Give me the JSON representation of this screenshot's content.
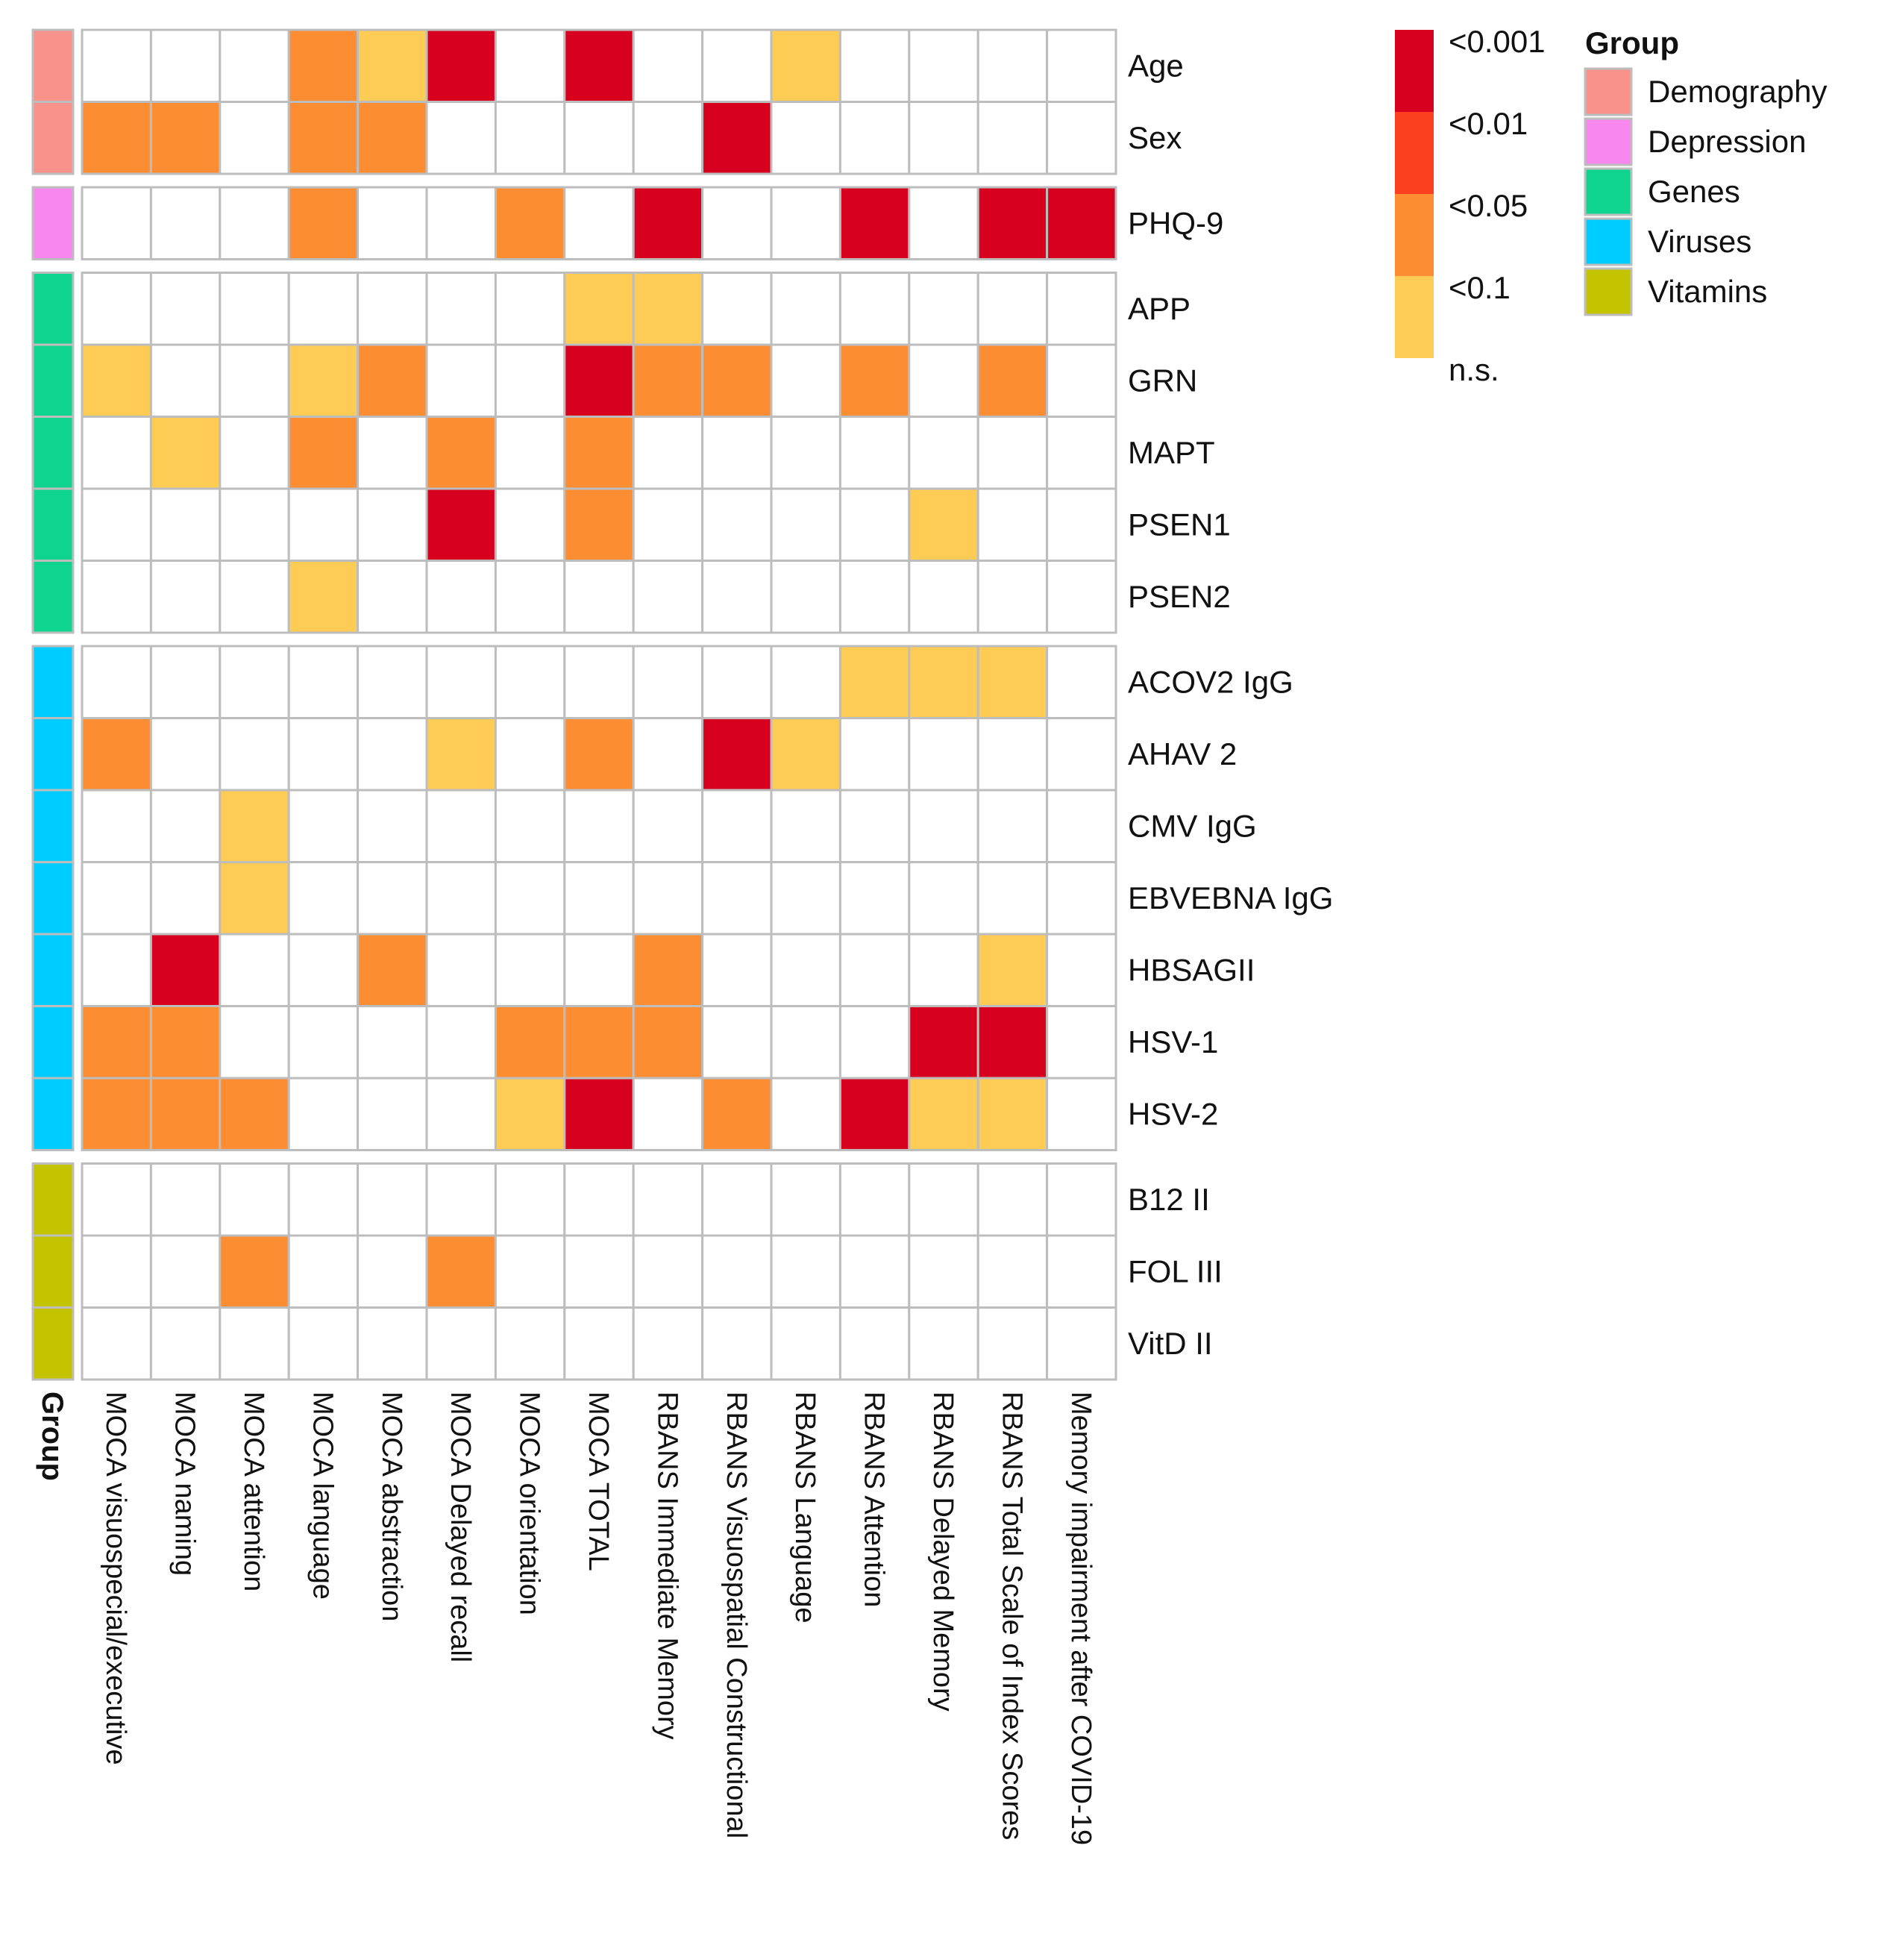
{
  "chart_data": {
    "type": "heatmap",
    "title": "",
    "columns": [
      "MOCA visuospecial/executive",
      "MOCA naming",
      "MOCA attention",
      "MOCA language",
      "MOCA abstraction",
      "MOCA Delayed recall",
      "MOCA orientation",
      "MOCA TOTAL",
      "RBANS Immediate Memory",
      "RBANS Visuospatial Constructional",
      "RBANS Language",
      "RBANS Attention",
      "RBANS Delayed Memory",
      "RBANS Total Scale of  Index Scores",
      "Memory impairment after COVID-19"
    ],
    "groups": [
      {
        "name": "Demography",
        "color": "#f8928a",
        "rows": [
          {
            "label": "Age",
            "values": [
              "ns",
              "ns",
              "ns",
              "<0.05",
              "<0.1",
              "<0.001",
              "ns",
              "<0.001",
              "ns",
              "ns",
              "<0.1",
              "ns",
              "ns",
              "ns",
              "ns"
            ]
          },
          {
            "label": "Sex",
            "values": [
              "<0.05",
              "<0.05",
              "ns",
              "<0.05",
              "<0.05",
              "ns",
              "ns",
              "ns",
              "ns",
              "<0.001",
              "ns",
              "ns",
              "ns",
              "ns",
              "ns"
            ]
          }
        ]
      },
      {
        "name": "Depression",
        "color": "#f987f0",
        "rows": [
          {
            "label": "PHQ-9",
            "values": [
              "ns",
              "ns",
              "ns",
              "<0.05",
              "ns",
              "ns",
              "<0.05",
              "ns",
              "<0.001",
              "ns",
              "ns",
              "<0.001",
              "ns",
              "<0.001",
              "<0.001"
            ]
          }
        ]
      },
      {
        "name": "Genes",
        "color": "#0ed48f",
        "rows": [
          {
            "label": "APP",
            "values": [
              "ns",
              "ns",
              "ns",
              "ns",
              "ns",
              "ns",
              "ns",
              "<0.1",
              "<0.1",
              "ns",
              "ns",
              "ns",
              "ns",
              "ns",
              "ns"
            ]
          },
          {
            "label": "GRN",
            "values": [
              "<0.1",
              "ns",
              "ns",
              "<0.1",
              "<0.05",
              "ns",
              "ns",
              "<0.001",
              "<0.05",
              "<0.05",
              "ns",
              "<0.05",
              "ns",
              "<0.05",
              "ns"
            ]
          },
          {
            "label": "MAPT",
            "values": [
              "ns",
              "<0.1",
              "ns",
              "<0.05",
              "ns",
              "<0.05",
              "ns",
              "<0.05",
              "ns",
              "ns",
              "ns",
              "ns",
              "ns",
              "ns",
              "ns"
            ]
          },
          {
            "label": "PSEN1",
            "values": [
              "ns",
              "ns",
              "ns",
              "ns",
              "ns",
              "<0.001",
              "ns",
              "<0.05",
              "ns",
              "ns",
              "ns",
              "ns",
              "<0.1",
              "ns",
              "ns"
            ]
          },
          {
            "label": "PSEN2",
            "values": [
              "ns",
              "ns",
              "ns",
              "<0.1",
              "ns",
              "ns",
              "ns",
              "ns",
              "ns",
              "ns",
              "ns",
              "ns",
              "ns",
              "ns",
              "ns"
            ]
          }
        ]
      },
      {
        "name": "Viruses",
        "color": "#00cdff",
        "rows": [
          {
            "label": "ACOV2 IgG",
            "values": [
              "ns",
              "ns",
              "ns",
              "ns",
              "ns",
              "ns",
              "ns",
              "ns",
              "ns",
              "ns",
              "ns",
              "<0.1",
              "<0.1",
              "<0.1",
              "ns"
            ]
          },
          {
            "label": "AHAV  2",
            "values": [
              "<0.05",
              "ns",
              "ns",
              "ns",
              "ns",
              "<0.1",
              "ns",
              "<0.05",
              "ns",
              "<0.001",
              "<0.1",
              "ns",
              "ns",
              "ns",
              "ns"
            ]
          },
          {
            "label": "CMV IgG",
            "values": [
              "ns",
              "ns",
              "<0.1",
              "ns",
              "ns",
              "ns",
              "ns",
              "ns",
              "ns",
              "ns",
              "ns",
              "ns",
              "ns",
              "ns",
              "ns"
            ]
          },
          {
            "label": "EBVEBNA IgG",
            "values": [
              "ns",
              "ns",
              "<0.1",
              "ns",
              "ns",
              "ns",
              "ns",
              "ns",
              "ns",
              "ns",
              "ns",
              "ns",
              "ns",
              "ns",
              "ns"
            ]
          },
          {
            "label": "HBSAGII",
            "values": [
              "ns",
              "<0.001",
              "ns",
              "ns",
              "<0.05",
              "ns",
              "ns",
              "ns",
              "<0.05",
              "ns",
              "ns",
              "ns",
              "ns",
              "<0.1",
              "ns"
            ]
          },
          {
            "label": "HSV-1",
            "values": [
              "<0.05",
              "<0.05",
              "ns",
              "ns",
              "ns",
              "ns",
              "<0.05",
              "<0.05",
              "<0.05",
              "ns",
              "ns",
              "ns",
              "<0.001",
              "<0.001",
              "ns"
            ]
          },
          {
            "label": "HSV-2",
            "values": [
              "<0.05",
              "<0.05",
              "<0.05",
              "ns",
              "ns",
              "ns",
              "<0.1",
              "<0.001",
              "ns",
              "<0.05",
              "ns",
              "<0.001",
              "<0.1",
              "<0.1",
              "ns"
            ]
          }
        ]
      },
      {
        "name": "Vitamins",
        "color": "#c3c300",
        "rows": [
          {
            "label": "B12 II",
            "values": [
              "ns",
              "ns",
              "ns",
              "ns",
              "ns",
              "ns",
              "ns",
              "ns",
              "ns",
              "ns",
              "ns",
              "ns",
              "ns",
              "ns",
              "ns"
            ]
          },
          {
            "label": "FOL III",
            "values": [
              "ns",
              "ns",
              "<0.05",
              "ns",
              "ns",
              "<0.05",
              "ns",
              "ns",
              "ns",
              "ns",
              "ns",
              "ns",
              "ns",
              "ns",
              "ns"
            ]
          },
          {
            "label": "VitD II",
            "values": [
              "ns",
              "ns",
              "ns",
              "ns",
              "ns",
              "ns",
              "ns",
              "ns",
              "ns",
              "ns",
              "ns",
              "ns",
              "ns",
              "ns",
              "ns"
            ]
          }
        ]
      }
    ],
    "group_axis_label": "Group",
    "significance_legend": [
      {
        "key": "<0.001",
        "label": "<0.001",
        "color": "#d7001f"
      },
      {
        "key": "<0.01",
        "label": "<0.01",
        "color": "#fc3f1f"
      },
      {
        "key": "<0.05",
        "label": "<0.05",
        "color": "#fd8d33"
      },
      {
        "key": "<0.1",
        "label": "<0.1",
        "color": "#fecb55"
      },
      {
        "key": "ns",
        "label": "n.s.",
        "color": "#ffffff"
      }
    ],
    "group_legend_title": "Group"
  }
}
